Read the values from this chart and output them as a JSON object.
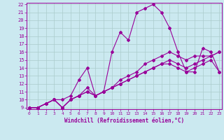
{
  "bg_color": "#cbe9f0",
  "line_color": "#990099",
  "grid_color": "#aacccc",
  "xlabel": "Windchill (Refroidissement éolien,°C)",
  "xmin": 0,
  "xmax": 23,
  "ymin": 9,
  "ymax": 22,
  "yticks": [
    9,
    10,
    11,
    12,
    13,
    14,
    15,
    16,
    17,
    18,
    19,
    20,
    21,
    22
  ],
  "xticks": [
    0,
    1,
    2,
    3,
    4,
    5,
    6,
    7,
    8,
    9,
    10,
    11,
    12,
    13,
    14,
    15,
    16,
    17,
    18,
    19,
    20,
    21,
    22,
    23
  ],
  "lines": [
    {
      "x": [
        0,
        1,
        2,
        3,
        4,
        5,
        6,
        7,
        8,
        9,
        10,
        11,
        12,
        13,
        14,
        15,
        16,
        17,
        18,
        19,
        20,
        21,
        22,
        23
      ],
      "y": [
        9.0,
        9.0,
        9.5,
        10.0,
        10.0,
        10.5,
        12.5,
        14.0,
        10.5,
        11.0,
        16.0,
        18.5,
        17.5,
        21.0,
        21.5,
        22.0,
        21.0,
        19.0,
        16.0,
        13.5,
        13.5,
        16.5,
        16.0,
        13.5
      ]
    },
    {
      "x": [
        0,
        1,
        2,
        3,
        4,
        5,
        6,
        7,
        8,
        9,
        10,
        11,
        12,
        13,
        14,
        15,
        16,
        17,
        18,
        19,
        20,
        21,
        22,
        23
      ],
      "y": [
        9.0,
        9.0,
        9.5,
        10.0,
        9.0,
        10.0,
        10.5,
        11.0,
        10.5,
        11.0,
        11.5,
        12.5,
        13.0,
        13.5,
        14.5,
        15.0,
        15.5,
        16.0,
        15.5,
        15.0,
        15.5,
        15.5,
        15.5,
        16.0
      ]
    },
    {
      "x": [
        0,
        1,
        2,
        3,
        4,
        5,
        6,
        7,
        8,
        9,
        10,
        11,
        12,
        13,
        14,
        15,
        16,
        17,
        18,
        19,
        20,
        21,
        22,
        23
      ],
      "y": [
        9.0,
        9.0,
        9.5,
        10.0,
        9.0,
        10.0,
        10.5,
        11.5,
        10.5,
        11.0,
        11.5,
        12.0,
        12.5,
        13.0,
        13.5,
        14.0,
        14.5,
        15.0,
        14.5,
        14.0,
        14.5,
        15.0,
        15.5,
        16.0
      ]
    },
    {
      "x": [
        0,
        1,
        2,
        3,
        4,
        5,
        6,
        7,
        8,
        9,
        10,
        11,
        12,
        13,
        14,
        15,
        16,
        17,
        18,
        19,
        20,
        21,
        22,
        23
      ],
      "y": [
        9.0,
        9.0,
        9.5,
        10.0,
        9.0,
        10.0,
        10.5,
        11.0,
        10.5,
        11.0,
        11.5,
        12.0,
        12.5,
        13.0,
        13.5,
        14.0,
        14.5,
        14.5,
        14.0,
        13.5,
        14.0,
        14.5,
        15.0,
        13.5
      ]
    }
  ]
}
